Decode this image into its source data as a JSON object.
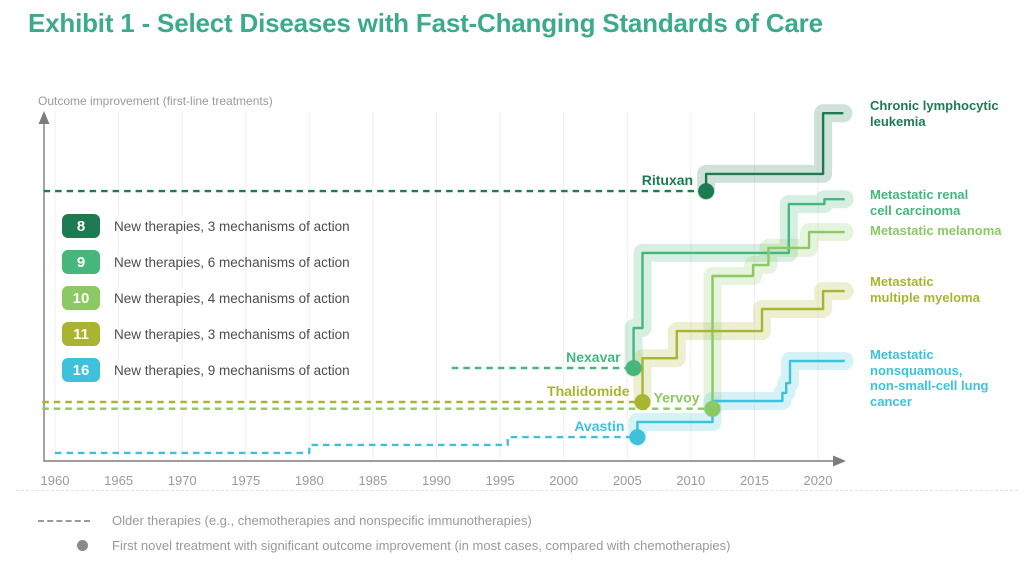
{
  "page": {
    "title": "Exhibit 1 - Select Diseases with Fast-Changing Standards of Care",
    "title_color": "#3cab8a"
  },
  "chart_data": {
    "type": "line",
    "step": true,
    "title": "Exhibit 1 - Select Diseases with Fast-Changing Standards of Care",
    "xlabel": "",
    "ylabel": "Outcome improvement (first-line treatments)",
    "x_ticks": [
      "1960",
      "1965",
      "1970",
      "1975",
      "1980",
      "1985",
      "1990",
      "1995",
      "2000",
      "2005",
      "2010",
      "2015",
      "2020"
    ],
    "x_range": [
      1959,
      2022.5
    ],
    "y_units": "relative outcome improvement (axis unlabeled, levels estimated 0-100)",
    "grid": "faint vertical gridlines at 5-year ticks",
    "legend_position": "upper-left inside plot",
    "legend": [
      {
        "count": "8",
        "label": "New therapies, 3 mechanisms of action",
        "color": "#1e7b51"
      },
      {
        "count": "9",
        "label": "New therapies, 6 mechanisms of action",
        "color": "#46b77c"
      },
      {
        "count": "10",
        "label": "New therapies, 4 mechanisms of action",
        "color": "#8cc863"
      },
      {
        "count": "11",
        "label": "New therapies, 3 mechanisms of action",
        "color": "#a9b531"
      },
      {
        "count": "16",
        "label": "New therapies, 9 mechanisms of action",
        "color": "#3ec2dc"
      }
    ],
    "series": [
      {
        "id": "cll",
        "disease": "Chronic lymphocytic leukemia",
        "disease_lines": [
          "Chronic lymphocytic",
          "leukemia"
        ],
        "drug": "Rituxan",
        "color": "#1e7b51",
        "dashed": [
          [
            1959.1,
            76.9
          ],
          [
            2011.2,
            76.9
          ]
        ],
        "dot": [
          2011.2,
          76.9
        ],
        "solid": [
          [
            2011.2,
            76.9
          ],
          [
            2011.2,
            81.8
          ],
          [
            2020.4,
            81.8
          ],
          [
            2020.4,
            99.1
          ],
          [
            2022.0,
            99.1
          ]
        ]
      },
      {
        "id": "renal",
        "disease": "Metastatic renal cell carcinoma",
        "disease_lines": [
          "Metastatic renal",
          "cell carcinoma"
        ],
        "drug": "Nexavar",
        "color": "#46b77c",
        "dashed": [
          [
            1991.2,
            26.5
          ],
          [
            2005.5,
            26.5
          ]
        ],
        "dot": [
          2005.5,
          26.5
        ],
        "solid": [
          [
            2005.5,
            26.5
          ],
          [
            2005.5,
            37.9
          ],
          [
            2006.2,
            37.9
          ],
          [
            2006.2,
            59.3
          ],
          [
            2017.7,
            59.3
          ],
          [
            2017.7,
            73.2
          ],
          [
            2020.5,
            73.2
          ],
          [
            2020.5,
            74.6
          ],
          [
            2022.1,
            74.6
          ]
        ]
      },
      {
        "id": "melanoma",
        "disease": "Metastatic melanoma",
        "disease_lines": [
          "Metastatic melanoma"
        ],
        "drug": "Yervoy",
        "color": "#8cc863",
        "dashed": [
          [
            1959.0,
            14.9
          ],
          [
            2011.7,
            14.9
          ]
        ],
        "dot": [
          2011.7,
          14.9
        ],
        "solid": [
          [
            2011.7,
            14.9
          ],
          [
            2011.7,
            52.7
          ],
          [
            2014.9,
            52.7
          ],
          [
            2014.9,
            55.8
          ],
          [
            2016.1,
            55.8
          ],
          [
            2016.1,
            60.7
          ],
          [
            2019.3,
            60.7
          ],
          [
            2019.3,
            65.2
          ],
          [
            2022.1,
            65.2
          ]
        ]
      },
      {
        "id": "myeloma",
        "disease": "Metastatic multiple myeloma",
        "disease_lines": [
          "Metastatic",
          "multiple myeloma"
        ],
        "drug": "Thalidomide",
        "color": "#a9b531",
        "dashed": [
          [
            1959.0,
            16.8
          ],
          [
            2006.2,
            16.8
          ]
        ],
        "dot": [
          2006.2,
          16.8
        ],
        "solid": [
          [
            2006.2,
            16.8
          ],
          [
            2006.2,
            29.3
          ],
          [
            2008.9,
            29.3
          ],
          [
            2008.9,
            37.0
          ],
          [
            2015.6,
            37.0
          ],
          [
            2015.6,
            43.3
          ],
          [
            2020.4,
            43.3
          ],
          [
            2020.4,
            48.4
          ],
          [
            2022.1,
            48.4
          ]
        ]
      },
      {
        "id": "lung",
        "disease": "Metastatic nonsquamous, non-small-cell lung cancer",
        "disease_lines": [
          "Metastatic",
          "nonsquamous,",
          "non-small-cell lung",
          "cancer"
        ],
        "drug": "Avastin",
        "color": "#3ec2dc",
        "dashed": [
          [
            1960.0,
            2.3
          ],
          [
            1980.0,
            2.3
          ],
          [
            1980.0,
            4.6
          ],
          [
            1995.6,
            4.6
          ],
          [
            1995.6,
            6.8
          ],
          [
            2005.8,
            6.8
          ]
        ],
        "dot": [
          2005.8,
          6.8
        ],
        "solid": [
          [
            2005.8,
            6.8
          ],
          [
            2005.8,
            11.1
          ],
          [
            2011.7,
            11.1
          ],
          [
            2011.7,
            17.1
          ],
          [
            2017.2,
            17.1
          ],
          [
            2017.2,
            19.4
          ],
          [
            2017.5,
            19.4
          ],
          [
            2017.5,
            22.2
          ],
          [
            2017.8,
            22.2
          ],
          [
            2017.8,
            28.5
          ],
          [
            2022.1,
            28.5
          ]
        ]
      }
    ],
    "footnotes": [
      {
        "icon": "dashed-line",
        "text": "Older therapies (e.g., chemotherapies and nonspecific immunotherapies)"
      },
      {
        "icon": "dot",
        "text": "First novel treatment with significant outcome improvement (in most cases, compared with chemotherapies)"
      }
    ]
  }
}
